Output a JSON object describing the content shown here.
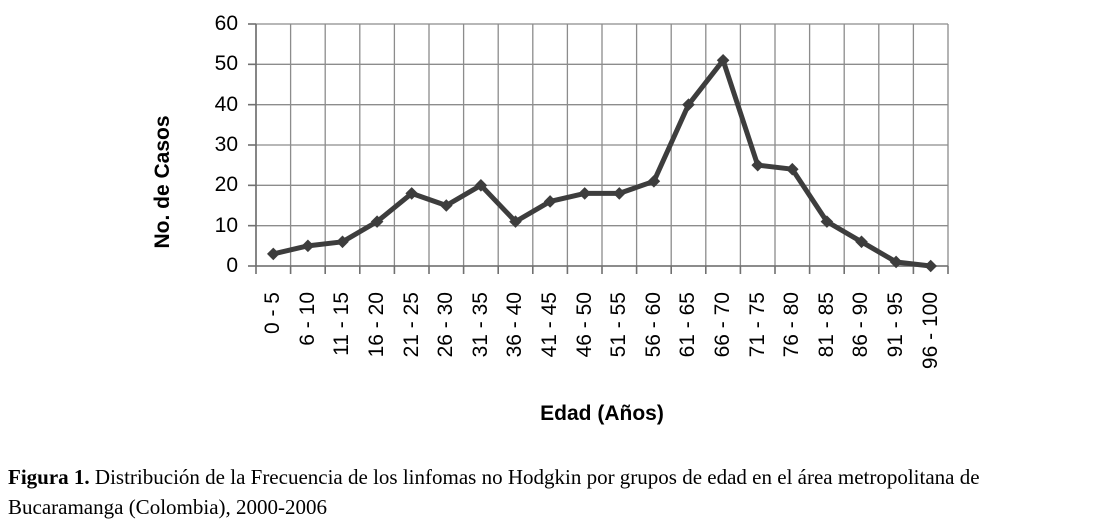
{
  "figure": {
    "caption_label": "Figura 1.",
    "caption_text": "Distribución de la  Frecuencia de los linfomas no Hodgkin por grupos de edad en el área metropolitana de Bucaramanga (Colombia), 2000-2006"
  },
  "chart_data": {
    "type": "line",
    "title": "",
    "xlabel": "Edad (Años)",
    "ylabel": "No. de Casos",
    "categories": [
      "0 - 5",
      "6 - 10",
      "11 - 15",
      "16 - 20",
      "21 - 25",
      "26 - 30",
      "31 - 35",
      "36 - 40",
      "41 - 45",
      "46 - 50",
      "51 - 55",
      "56 - 60",
      "61 - 65",
      "66 - 70",
      "71 - 75",
      "76 - 80",
      "81 - 85",
      "86 - 90",
      "91 - 95",
      "96 - 100"
    ],
    "values": [
      3,
      5,
      6,
      11,
      18,
      15,
      20,
      11,
      16,
      18,
      18,
      21,
      40,
      51,
      25,
      24,
      11,
      6,
      1,
      0
    ],
    "ylim": [
      0,
      60
    ],
    "yticks": [
      0,
      10,
      20,
      30,
      40,
      50,
      60
    ],
    "grid": true,
    "legend": false,
    "marker": "diamond",
    "colors": {
      "line": "#3d3d3d",
      "grid": "#8c8c8c",
      "axis": "#707070",
      "text": "#000000"
    }
  }
}
